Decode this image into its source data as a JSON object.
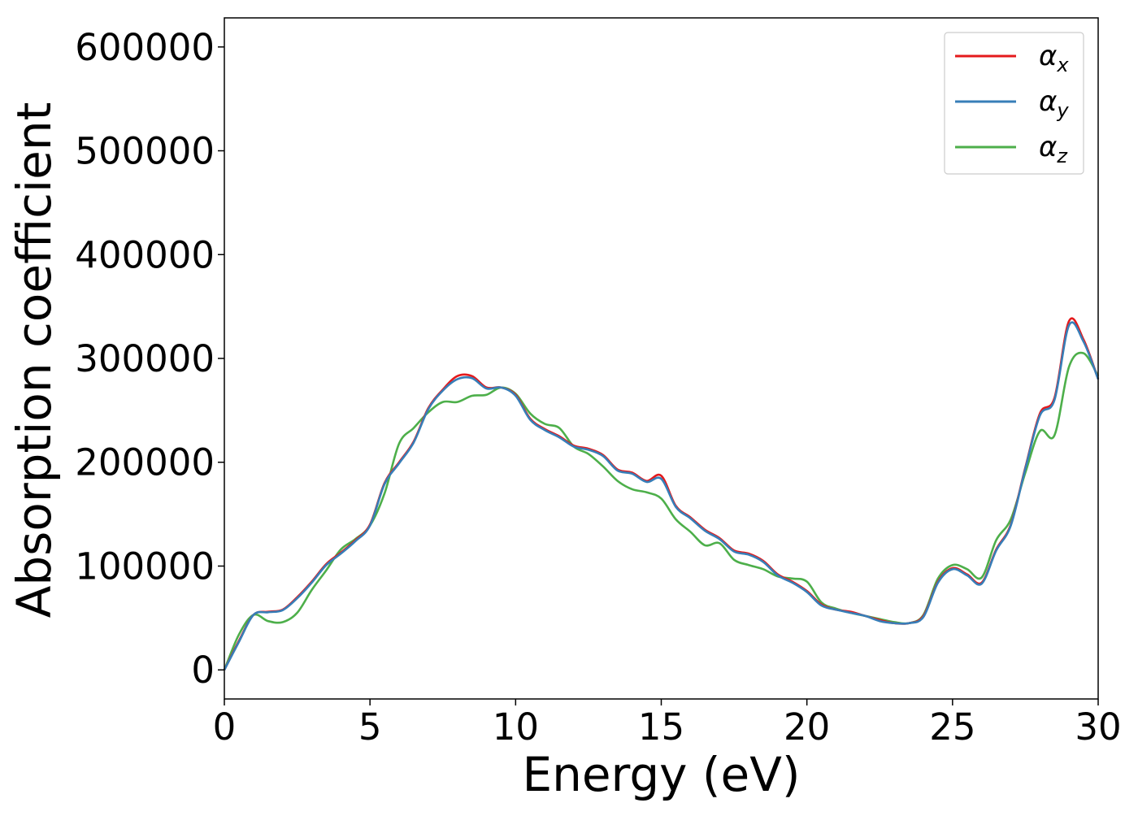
{
  "chart_data": {
    "type": "line",
    "title": "",
    "xlabel": "Energy (eV)",
    "ylabel": "Absorption coefficient",
    "xlim": [
      0,
      30
    ],
    "ylim": [
      -28000,
      628000
    ],
    "x_ticks": [
      0,
      5,
      10,
      15,
      20,
      25,
      30
    ],
    "x_tick_labels": [
      "0",
      "5",
      "10",
      "15",
      "20",
      "25",
      "30"
    ],
    "y_ticks": [
      0,
      100000,
      200000,
      300000,
      400000,
      500000,
      600000
    ],
    "y_tick_labels": [
      "0",
      "100000",
      "200000",
      "300000",
      "400000",
      "500000",
      "600000"
    ],
    "grid": false,
    "legend_position": "top-right",
    "x": [
      0,
      0.5,
      1,
      1.5,
      2,
      2.5,
      3,
      3.5,
      4,
      4.5,
      5,
      5.5,
      6,
      6.5,
      7,
      7.5,
      8,
      8.5,
      9,
      9.5,
      10,
      10.5,
      11,
      11.5,
      12,
      12.5,
      13,
      13.5,
      14,
      14.5,
      15,
      15.5,
      16,
      16.5,
      17,
      17.5,
      18,
      18.5,
      19,
      19.5,
      20,
      20.5,
      21,
      21.5,
      22,
      22.5,
      23,
      23.5,
      24,
      24.5,
      25,
      25.5,
      26,
      26.5,
      27,
      27.5,
      28,
      28.5,
      29,
      29.5,
      30
    ],
    "series": [
      {
        "name": "α",
        "subscript": "x",
        "color": "#e41a1c",
        "values": [
          0,
          28000,
          53000,
          56000,
          58000,
          70000,
          85000,
          102000,
          113000,
          125000,
          140000,
          180000,
          200000,
          220000,
          252000,
          270000,
          283000,
          283000,
          272000,
          272000,
          265000,
          242000,
          232000,
          225000,
          216000,
          213000,
          207000,
          193000,
          190000,
          182000,
          187000,
          158000,
          147000,
          135000,
          127000,
          115000,
          112000,
          105000,
          92000,
          85000,
          76000,
          63000,
          58000,
          56000,
          52000,
          48000,
          45000,
          45000,
          52000,
          85000,
          98000,
          92000,
          84000,
          116000,
          140000,
          195000,
          247000,
          262000,
          336000,
          318000,
          280000
        ]
      },
      {
        "name": "α",
        "subscript": "y",
        "color": "#377eb8",
        "values": [
          0,
          27000,
          53000,
          55500,
          57500,
          69000,
          84000,
          101000,
          112000,
          124000,
          139000,
          179000,
          199000,
          219000,
          251000,
          269000,
          280000,
          281000,
          271000,
          272000,
          264000,
          241000,
          231000,
          224000,
          215000,
          212000,
          206000,
          192000,
          189000,
          181000,
          184000,
          157000,
          146000,
          134000,
          126000,
          114000,
          111000,
          104000,
          91000,
          84000,
          75000,
          62000,
          58000,
          55000,
          52000,
          47000,
          45000,
          45000,
          51000,
          84000,
          97000,
          91000,
          83000,
          115000,
          139000,
          194000,
          245000,
          260000,
          332000,
          316000,
          280000
        ]
      },
      {
        "name": "α",
        "subscript": "z",
        "color": "#4daf4a",
        "values": [
          0,
          34000,
          53000,
          47000,
          46000,
          55000,
          77000,
          96000,
          116000,
          126000,
          139000,
          170000,
          218000,
          233000,
          248000,
          258000,
          258000,
          264000,
          265000,
          272000,
          266000,
          247000,
          237000,
          233000,
          215000,
          208000,
          196000,
          182000,
          174000,
          171000,
          165000,
          145000,
          133000,
          120000,
          122000,
          106000,
          101000,
          97000,
          90000,
          88000,
          85000,
          65000,
          59000,
          55000,
          52000,
          49000,
          46000,
          45000,
          53000,
          88000,
          101000,
          97000,
          89000,
          125000,
          145000,
          190000,
          230000,
          226000,
          292000,
          305000,
          283000
        ]
      }
    ]
  }
}
